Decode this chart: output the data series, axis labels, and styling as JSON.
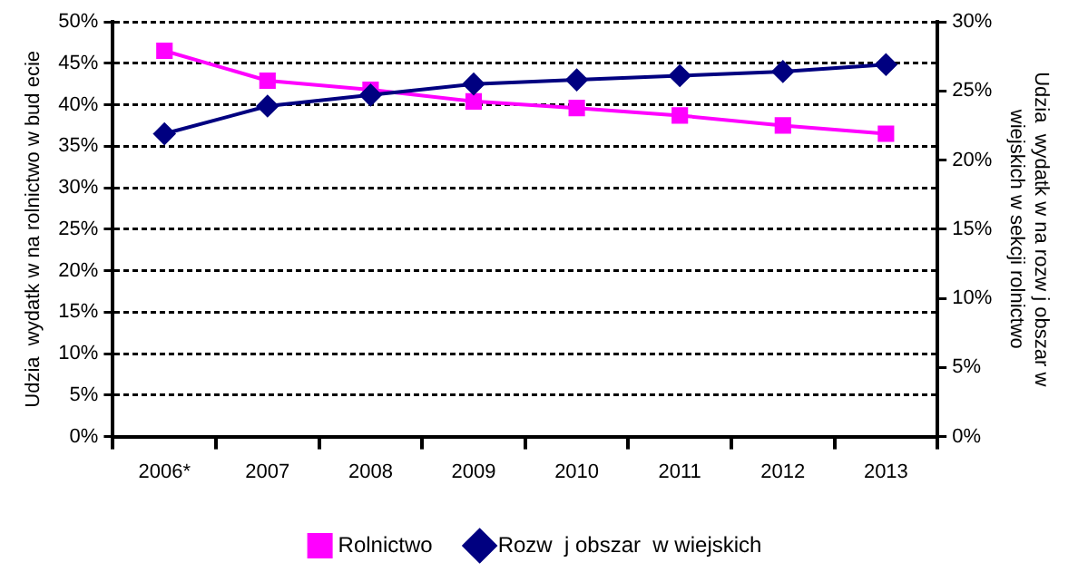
{
  "chart_data": {
    "type": "line",
    "categories": [
      "2006*",
      "2007",
      "2008",
      "2009",
      "2010",
      "2011",
      "2012",
      "2013"
    ],
    "series": [
      {
        "name": "Rolnictwo",
        "color": "#ff00ff",
        "marker": "square",
        "values": [
          46.5,
          42.9,
          41.8,
          40.4,
          39.6,
          38.7,
          37.5,
          36.5
        ]
      },
      {
        "name": "Rozw  j obszar  w wiejskich",
        "color": "#000080",
        "marker": "diamond",
        "axis": "y2",
        "values": [
          21.9,
          23.9,
          24.7,
          25.5,
          25.8,
          26.1,
          26.4,
          26.9
        ]
      }
    ],
    "ylabel": "Udzia  wydatk w na rolnictwo w bud ecie",
    "y2label": "Udzia  wydatk w na rozw j obszar w\nwiejskich w sekcji rolnictwo",
    "ylim": [
      0,
      50
    ],
    "yticks": [
      {
        "value": 0,
        "label": "0%"
      },
      {
        "value": 5,
        "label": "5%"
      },
      {
        "value": 10,
        "label": "10%"
      },
      {
        "value": 15,
        "label": "15%"
      },
      {
        "value": 20,
        "label": "20%"
      },
      {
        "value": 25,
        "label": "25%"
      },
      {
        "value": 30,
        "label": "30%"
      },
      {
        "value": 35,
        "label": "35%"
      },
      {
        "value": 40,
        "label": "40%"
      },
      {
        "value": 45,
        "label": "45%"
      },
      {
        "value": 50,
        "label": "50%"
      }
    ],
    "y2lim": [
      0,
      30
    ],
    "y2ticks": [
      {
        "value": 0,
        "label": "0%"
      },
      {
        "value": 5,
        "label": "5%"
      },
      {
        "value": 10,
        "label": "10%"
      },
      {
        "value": 15,
        "label": "15%"
      },
      {
        "value": 20,
        "label": "20%"
      },
      {
        "value": 25,
        "label": "25%"
      },
      {
        "value": 30,
        "label": "30%"
      }
    ],
    "grid": "y",
    "legend": "bottom",
    "line_style": "solid"
  }
}
